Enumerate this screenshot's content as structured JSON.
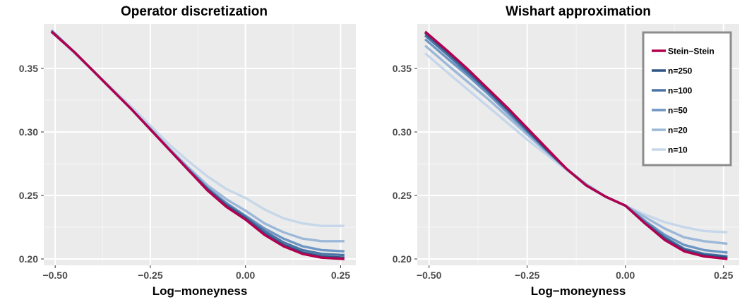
{
  "chart_data": [
    {
      "type": "line",
      "title": "Operator discretization",
      "xlabel": "Log−moneyness",
      "ylabel": "",
      "xlim": [
        -0.53,
        0.29
      ],
      "ylim": [
        0.195,
        0.385
      ],
      "xticks": [
        -0.5,
        -0.25,
        0.0,
        0.25
      ],
      "xtick_labels": [
        "−0.50",
        "−0.25",
        "0.00",
        "0.25"
      ],
      "yticks": [
        0.2,
        0.25,
        0.3,
        0.35
      ],
      "ytick_labels": [
        "0.20",
        "0.25",
        "0.30",
        "0.35"
      ],
      "grid": true,
      "legend": null,
      "x": [
        -0.51,
        -0.45,
        -0.4,
        -0.35,
        -0.3,
        -0.25,
        -0.2,
        -0.15,
        -0.1,
        -0.05,
        0.0,
        0.05,
        0.1,
        0.15,
        0.2,
        0.26
      ],
      "series": [
        {
          "name": "n=10",
          "color": "#c6d7ea",
          "values": [
            0.38,
            0.362,
            0.348,
            0.334,
            0.32,
            0.305,
            0.29,
            0.277,
            0.265,
            0.255,
            0.248,
            0.239,
            0.232,
            0.228,
            0.226,
            0.226
          ]
        },
        {
          "name": "n=20",
          "color": "#9cb8d8",
          "values": [
            0.38,
            0.363,
            0.348,
            0.333,
            0.318,
            0.303,
            0.287,
            0.272,
            0.258,
            0.247,
            0.238,
            0.228,
            0.221,
            0.216,
            0.214,
            0.214
          ]
        },
        {
          "name": "n=50",
          "color": "#6e96c4",
          "values": [
            0.38,
            0.363,
            0.348,
            0.333,
            0.318,
            0.302,
            0.286,
            0.271,
            0.256,
            0.244,
            0.234,
            0.224,
            0.216,
            0.21,
            0.207,
            0.206
          ]
        },
        {
          "name": "n=100",
          "color": "#4a74a6",
          "values": [
            0.379,
            0.363,
            0.348,
            0.333,
            0.318,
            0.302,
            0.286,
            0.27,
            0.255,
            0.243,
            0.233,
            0.222,
            0.213,
            0.207,
            0.204,
            0.203
          ]
        },
        {
          "name": "n=250",
          "color": "#2f5686",
          "values": [
            0.379,
            0.363,
            0.348,
            0.333,
            0.318,
            0.302,
            0.286,
            0.27,
            0.255,
            0.242,
            0.232,
            0.22,
            0.211,
            0.205,
            0.202,
            0.201
          ]
        },
        {
          "name": "Stein−Stein",
          "color": "#b2004f",
          "values": [
            0.379,
            0.363,
            0.348,
            0.333,
            0.318,
            0.302,
            0.286,
            0.27,
            0.254,
            0.241,
            0.231,
            0.219,
            0.21,
            0.204,
            0.201,
            0.2
          ]
        }
      ]
    },
    {
      "type": "line",
      "title": "Wishart approximation",
      "xlabel": "Log−moneyness",
      "ylabel": "",
      "xlim": [
        -0.53,
        0.29
      ],
      "ylim": [
        0.195,
        0.385
      ],
      "xticks": [
        -0.5,
        -0.25,
        0.0,
        0.25
      ],
      "xtick_labels": [
        "−0.50",
        "−0.25",
        "0.00",
        "0.25"
      ],
      "yticks": [
        0.2,
        0.25,
        0.3,
        0.35
      ],
      "ytick_labels": [
        "0.20",
        "0.25",
        "0.30",
        "0.35"
      ],
      "grid": true,
      "legend": "top-right",
      "x": [
        -0.51,
        -0.45,
        -0.4,
        -0.35,
        -0.3,
        -0.25,
        -0.2,
        -0.15,
        -0.1,
        -0.05,
        0.0,
        0.05,
        0.1,
        0.15,
        0.2,
        0.26
      ],
      "series": [
        {
          "name": "n=10",
          "color": "#c6d7ea",
          "values": [
            0.362,
            0.346,
            0.333,
            0.32,
            0.307,
            0.294,
            0.282,
            0.27,
            0.259,
            0.249,
            0.242,
            0.235,
            0.229,
            0.225,
            0.222,
            0.221
          ]
        },
        {
          "name": "n=20",
          "color": "#9cb8d8",
          "values": [
            0.368,
            0.352,
            0.339,
            0.326,
            0.312,
            0.298,
            0.284,
            0.271,
            0.259,
            0.249,
            0.242,
            0.233,
            0.224,
            0.217,
            0.214,
            0.212
          ]
        },
        {
          "name": "n=50",
          "color": "#6e96c4",
          "values": [
            0.373,
            0.357,
            0.344,
            0.33,
            0.315,
            0.3,
            0.285,
            0.271,
            0.258,
            0.249,
            0.242,
            0.23,
            0.219,
            0.211,
            0.207,
            0.205
          ]
        },
        {
          "name": "n=100",
          "color": "#4a74a6",
          "values": [
            0.376,
            0.36,
            0.346,
            0.332,
            0.317,
            0.301,
            0.286,
            0.271,
            0.258,
            0.249,
            0.242,
            0.229,
            0.217,
            0.208,
            0.204,
            0.202
          ]
        },
        {
          "name": "n=250",
          "color": "#2f5686",
          "values": [
            0.378,
            0.362,
            0.348,
            0.333,
            0.318,
            0.302,
            0.286,
            0.271,
            0.258,
            0.249,
            0.242,
            0.228,
            0.216,
            0.207,
            0.203,
            0.201
          ]
        },
        {
          "name": "Stein−Stein",
          "color": "#b2004f",
          "values": [
            0.379,
            0.363,
            0.349,
            0.334,
            0.319,
            0.303,
            0.287,
            0.271,
            0.258,
            0.249,
            0.242,
            0.228,
            0.215,
            0.206,
            0.202,
            0.2
          ]
        }
      ]
    }
  ]
}
